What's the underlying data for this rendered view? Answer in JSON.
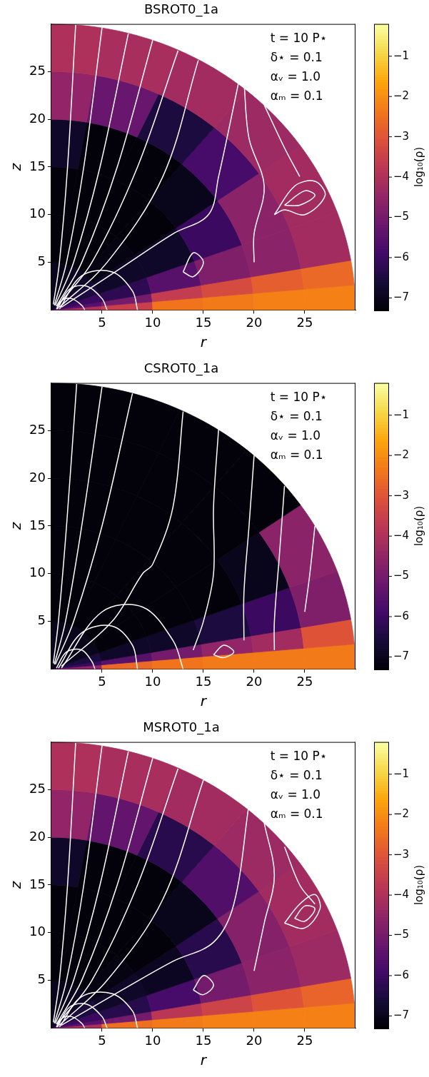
{
  "chart_data": [
    {
      "type": "polar_heatmap",
      "title": "BSROT0_1a",
      "x_label": "r",
      "y_label": "z",
      "xlim": [
        0,
        30
      ],
      "ylim": [
        0,
        30
      ],
      "xticks": [
        5,
        10,
        15,
        20,
        25
      ],
      "yticks": [
        5,
        10,
        15,
        20,
        25
      ],
      "annotations": [
        "t = 10 P⋆",
        "δ⋆ = 0.1",
        "αᵥ = 1.0",
        "αₘ = 0.1"
      ],
      "colorbar": {
        "label": "log₁₀(ρ)",
        "range": [
          -7.3,
          -0.2
        ],
        "ticks": [
          {
            "value": -7,
            "label": "−7"
          },
          {
            "value": -6,
            "label": "−6"
          },
          {
            "value": -5,
            "label": "−5"
          },
          {
            "value": -4,
            "label": "−4"
          },
          {
            "value": -3,
            "label": "−3"
          },
          {
            "value": -2,
            "label": "−2"
          },
          {
            "value": -1,
            "label": "−1"
          }
        ]
      },
      "density": {
        "r_edges": [
          0,
          5,
          10,
          15,
          20,
          25,
          30
        ],
        "theta_edges_deg": [
          0,
          5,
          10,
          20,
          35,
          50,
          65,
          80,
          90
        ],
        "log10_rho": [
          [
            -4.0,
            -3.5,
            -2.4,
            -2.3,
            -2.2,
            -2.2
          ],
          [
            -5.5,
            -5.0,
            -3.6,
            -3.2,
            -2.8,
            -2.6
          ],
          [
            -6.0,
            -6.2,
            -5.5,
            -4.8,
            -4.6,
            -4.2
          ],
          [
            -6.5,
            -6.8,
            -6.8,
            -6.0,
            -4.6,
            -4.2
          ],
          [
            -6.8,
            -7.1,
            -7.2,
            -7.0,
            -5.8,
            -4.3
          ],
          [
            -6.9,
            -7.2,
            -7.2,
            -7.2,
            -6.5,
            -4.2
          ],
          [
            -7.0,
            -7.2,
            -7.2,
            -7.2,
            -5.2,
            -4.1
          ],
          [
            -7.0,
            -7.2,
            -7.2,
            -6.8,
            -4.5,
            -4.0
          ]
        ]
      },
      "color": "#ffffff",
      "field_lines": [
        [
          [
            0.2,
            0.6
          ],
          [
            0.8,
            5
          ],
          [
            1.6,
            15
          ],
          [
            2.4,
            29.9
          ]
        ],
        [
          [
            0.3,
            0.5
          ],
          [
            1.5,
            5
          ],
          [
            3.2,
            15
          ],
          [
            5,
            29.6
          ]
        ],
        [
          [
            0.4,
            0.5
          ],
          [
            2.2,
            5
          ],
          [
            4.8,
            15
          ],
          [
            7.6,
            29
          ]
        ],
        [
          [
            0.5,
            0.4
          ],
          [
            3,
            5
          ],
          [
            6.5,
            15
          ],
          [
            10,
            28.3
          ]
        ],
        [
          [
            0.6,
            0.4
          ],
          [
            4,
            5
          ],
          [
            8.5,
            15
          ],
          [
            12.5,
            27.2
          ]
        ],
        [
          [
            0.8,
            0.3
          ],
          [
            5.5,
            5
          ],
          [
            11,
            14
          ],
          [
            14.5,
            26.2
          ]
        ],
        [
          [
            1,
            0.3
          ],
          [
            7,
            4.5
          ],
          [
            12,
            8
          ],
          [
            15.5,
            10
          ],
          [
            16.5,
            14
          ],
          [
            18.5,
            24
          ]
        ],
        [
          [
            0.5,
            0.1
          ],
          [
            1,
            1
          ],
          [
            2,
            1.2
          ],
          [
            3,
            0.5
          ],
          [
            3.3,
            0
          ]
        ],
        [
          [
            0.6,
            0.1
          ],
          [
            1.8,
            2.2
          ],
          [
            3.5,
            2.5
          ],
          [
            5,
            1.2
          ],
          [
            5.5,
            0
          ]
        ],
        [
          [
            0.8,
            0.1
          ],
          [
            3,
            3.6
          ],
          [
            6,
            4
          ],
          [
            8,
            2
          ],
          [
            8.5,
            0
          ]
        ],
        [
          [
            19,
            24
          ],
          [
            19.5,
            18
          ],
          [
            21,
            13
          ],
          [
            20,
            8
          ],
          [
            20,
            5
          ]
        ],
        [
          [
            21,
            21.5
          ],
          [
            23,
            17
          ],
          [
            24.5,
            14
          ]
        ],
        [
          [
            22,
            10
          ],
          [
            24,
            13
          ],
          [
            26,
            13.5
          ],
          [
            27,
            12
          ],
          [
            25,
            10
          ],
          [
            23,
            10.5
          ],
          [
            22,
            10
          ]
        ],
        [
          [
            23,
            11
          ],
          [
            25,
            12.5
          ],
          [
            26,
            12
          ],
          [
            24.5,
            11
          ],
          [
            23,
            11
          ]
        ],
        [
          [
            13,
            4
          ],
          [
            14,
            6
          ],
          [
            15,
            5
          ],
          [
            14,
            3.5
          ],
          [
            13,
            4
          ]
        ]
      ]
    },
    {
      "type": "polar_heatmap",
      "title": "CSROT0_1a",
      "x_label": "r",
      "y_label": "z",
      "xlim": [
        0,
        30
      ],
      "ylim": [
        0,
        30
      ],
      "xticks": [
        5,
        10,
        15,
        20,
        25
      ],
      "yticks": [
        5,
        10,
        15,
        20,
        25
      ],
      "annotations": [
        "t = 10 P⋆",
        "δ⋆ = 0.1",
        "αᵥ = 1.0",
        "αₘ = 0.1"
      ],
      "colorbar": {
        "label": "log₁₀(ρ)",
        "range": [
          -7.3,
          -0.2
        ],
        "ticks": [
          {
            "value": -7,
            "label": "−7"
          },
          {
            "value": -6,
            "label": "−6"
          },
          {
            "value": -5,
            "label": "−5"
          },
          {
            "value": -4,
            "label": "−4"
          },
          {
            "value": -3,
            "label": "−3"
          },
          {
            "value": -2,
            "label": "−2"
          },
          {
            "value": -1,
            "label": "−1"
          }
        ]
      },
      "density": {
        "r_edges": [
          0,
          5,
          10,
          15,
          20,
          25,
          30
        ],
        "theta_edges_deg": [
          0,
          5,
          10,
          20,
          35,
          50,
          65,
          80,
          90
        ],
        "log10_rho": [
          [
            -4.5,
            -2.6,
            -2.4,
            -2.3,
            -2.3,
            -2.3
          ],
          [
            -6.0,
            -5.5,
            -5.0,
            -4.5,
            -4.2,
            -3.0
          ],
          [
            -6.5,
            -6.8,
            -6.8,
            -6.5,
            -6.0,
            -4.8
          ],
          [
            -7.0,
            -7.2,
            -7.2,
            -7.2,
            -7.0,
            -4.6
          ],
          [
            -7.0,
            -7.2,
            -7.2,
            -7.2,
            -7.2,
            -7.2
          ],
          [
            -7.0,
            -7.2,
            -7.2,
            -7.2,
            -7.2,
            -7.2
          ],
          [
            -7.0,
            -7.2,
            -7.2,
            -7.2,
            -7.2,
            -7.2
          ],
          [
            -7.0,
            -7.2,
            -7.2,
            -7.2,
            -7.2,
            -7.2
          ]
        ]
      },
      "color": "#ffffff",
      "field_lines": [
        [
          [
            0.2,
            0.6
          ],
          [
            0.7,
            5
          ],
          [
            1.5,
            15
          ],
          [
            2.5,
            29.9
          ]
        ],
        [
          [
            0.3,
            0.5
          ],
          [
            1.4,
            5
          ],
          [
            3,
            15
          ],
          [
            5,
            29.6
          ]
        ],
        [
          [
            0.4,
            0.5
          ],
          [
            2.2,
            5
          ],
          [
            5,
            15
          ],
          [
            8,
            28.9
          ]
        ],
        [
          [
            1,
            0.3
          ],
          [
            6,
            5
          ],
          [
            9,
            10
          ],
          [
            10,
            11
          ],
          [
            12,
            17
          ],
          [
            13,
            27
          ]
        ],
        [
          [
            16.5,
            25.2
          ],
          [
            16,
            17
          ],
          [
            16,
            10
          ],
          [
            15,
            5
          ],
          [
            14,
            2
          ]
        ],
        [
          [
            20,
            22.4
          ],
          [
            19.5,
            15
          ],
          [
            19,
            8
          ],
          [
            19,
            3
          ]
        ],
        [
          [
            23,
            19.2
          ],
          [
            22.5,
            12
          ],
          [
            22,
            5
          ],
          [
            22,
            2
          ]
        ],
        [
          [
            26,
            15
          ],
          [
            25.5,
            10
          ],
          [
            25,
            6
          ]
        ],
        [
          [
            0.5,
            0.1
          ],
          [
            1.5,
            1.8
          ],
          [
            3,
            2
          ],
          [
            4,
            0.8
          ],
          [
            4.3,
            0
          ]
        ],
        [
          [
            0.7,
            0.1
          ],
          [
            3,
            3.8
          ],
          [
            6,
            4.5
          ],
          [
            8,
            2.5
          ],
          [
            8.5,
            0
          ]
        ],
        [
          [
            1,
            0.1
          ],
          [
            5,
            6
          ],
          [
            9,
            6.5
          ],
          [
            12,
            3
          ],
          [
            13,
            0
          ]
        ],
        [
          [
            16,
            1.5
          ],
          [
            17,
            2.5
          ],
          [
            18,
            1.8
          ],
          [
            17,
            1.2
          ],
          [
            16,
            1.5
          ]
        ]
      ]
    },
    {
      "type": "polar_heatmap",
      "title": "MSROT0_1a",
      "x_label": "r",
      "y_label": "z",
      "xlim": [
        0,
        30
      ],
      "ylim": [
        0,
        30
      ],
      "xticks": [
        5,
        10,
        15,
        20,
        25
      ],
      "yticks": [
        5,
        10,
        15,
        20,
        25
      ],
      "annotations": [
        "t = 10 P⋆",
        "δ⋆ = 0.1",
        "αᵥ = 1.0",
        "αₘ = 0.1"
      ],
      "colorbar": {
        "label": "log₁₀(ρ)",
        "range": [
          -7.3,
          -0.2
        ],
        "ticks": [
          {
            "value": -7,
            "label": "−7"
          },
          {
            "value": -6,
            "label": "−6"
          },
          {
            "value": -5,
            "label": "−5"
          },
          {
            "value": -4,
            "label": "−4"
          },
          {
            "value": -3,
            "label": "−3"
          },
          {
            "value": -2,
            "label": "−2"
          },
          {
            "value": -1,
            "label": "−1"
          }
        ]
      },
      "density": {
        "r_edges": [
          0,
          5,
          10,
          15,
          20,
          25,
          30
        ],
        "theta_edges_deg": [
          0,
          5,
          10,
          20,
          35,
          50,
          65,
          80,
          90
        ],
        "log10_rho": [
          [
            -4.0,
            -2.5,
            -2.3,
            -2.2,
            -2.2,
            -2.2
          ],
          [
            -5.5,
            -5.0,
            -3.8,
            -3.4,
            -3.0,
            -2.7
          ],
          [
            -6.0,
            -6.3,
            -5.8,
            -5.0,
            -4.6,
            -4.3
          ],
          [
            -6.5,
            -6.8,
            -6.9,
            -6.3,
            -4.7,
            -4.2
          ],
          [
            -6.8,
            -7.1,
            -7.2,
            -7.0,
            -5.6,
            -4.3
          ],
          [
            -6.9,
            -7.2,
            -7.2,
            -7.2,
            -6.3,
            -4.2
          ],
          [
            -7.0,
            -7.2,
            -7.2,
            -7.2,
            -5.3,
            -4.1
          ],
          [
            -7.0,
            -7.2,
            -7.2,
            -6.8,
            -4.5,
            -4.0
          ]
        ]
      },
      "color": "#ffffff",
      "field_lines": [
        [
          [
            0.2,
            0.6
          ],
          [
            0.8,
            5
          ],
          [
            1.6,
            15
          ],
          [
            2.4,
            29.9
          ]
        ],
        [
          [
            0.3,
            0.5
          ],
          [
            1.5,
            5
          ],
          [
            3.2,
            15
          ],
          [
            5,
            29.6
          ]
        ],
        [
          [
            0.4,
            0.5
          ],
          [
            2.2,
            5
          ],
          [
            4.8,
            15
          ],
          [
            7.6,
            29
          ]
        ],
        [
          [
            0.5,
            0.4
          ],
          [
            3,
            5
          ],
          [
            6.5,
            15
          ],
          [
            10,
            28.3
          ]
        ],
        [
          [
            0.6,
            0.4
          ],
          [
            4,
            5
          ],
          [
            8.5,
            15
          ],
          [
            12.5,
            27.2
          ]
        ],
        [
          [
            0.8,
            0.3
          ],
          [
            5.5,
            5
          ],
          [
            11,
            13.5
          ],
          [
            15,
            26
          ]
        ],
        [
          [
            1,
            0.3
          ],
          [
            7,
            4
          ],
          [
            12,
            7
          ],
          [
            16,
            9
          ],
          [
            18,
            13
          ],
          [
            19.5,
            23.5
          ]
        ],
        [
          [
            0.5,
            0.1
          ],
          [
            1,
            1
          ],
          [
            2,
            1.2
          ],
          [
            3,
            0.5
          ],
          [
            3.3,
            0
          ]
        ],
        [
          [
            0.6,
            0.1
          ],
          [
            1.8,
            2.2
          ],
          [
            3.5,
            2.5
          ],
          [
            5,
            1.2
          ],
          [
            5.5,
            0
          ]
        ],
        [
          [
            0.8,
            0.1
          ],
          [
            3,
            3.3
          ],
          [
            6,
            3.6
          ],
          [
            8,
            1.8
          ],
          [
            8.5,
            0
          ]
        ],
        [
          [
            21,
            21.5
          ],
          [
            22,
            16
          ],
          [
            21,
            11
          ],
          [
            20,
            6
          ]
        ],
        [
          [
            23,
            19
          ],
          [
            24.5,
            15
          ],
          [
            26,
            13
          ]
        ],
        [
          [
            23,
            11
          ],
          [
            24.5,
            13
          ],
          [
            26,
            14
          ],
          [
            26.5,
            12.5
          ],
          [
            25,
            10.5
          ],
          [
            23,
            11
          ]
        ],
        [
          [
            24,
            11.5
          ],
          [
            25,
            12.8
          ],
          [
            26,
            12.5
          ],
          [
            25,
            11.2
          ],
          [
            24,
            11.5
          ]
        ],
        [
          [
            14,
            4
          ],
          [
            15,
            5.5
          ],
          [
            16,
            4.5
          ],
          [
            15,
            3.5
          ],
          [
            14,
            4
          ]
        ]
      ]
    }
  ]
}
